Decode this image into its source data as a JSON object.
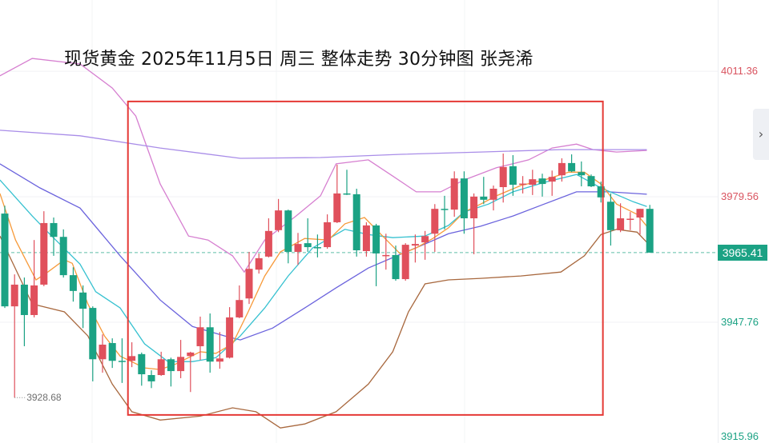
{
  "title": "现货黄金 2025年11月5日 周三 整体走势 30分钟图 张尧浠",
  "colors": {
    "up": "#e0505c",
    "down": "#1ba284",
    "upper_band": "#d67fd0",
    "lower_band": "#a8683e",
    "ma_fast": "#f79a3a",
    "ma_mid": "#36c1d0",
    "ma_slow": "#6b63dd",
    "ma_long": "#a98de8",
    "box": "#e53935",
    "axis_up": "#d9535f",
    "axis_down": "#1ba284"
  },
  "side_tab_icon": "chevron-right-icon",
  "chart_data": {
    "type": "candlestick",
    "title": "现货黄金 2025年11月5日 周三 整体走势 30分钟图 张尧浠",
    "ylim": [
      3915.96,
      4020.0
    ],
    "y_ticks": [
      "4011.36",
      "3979.56",
      "3947.76",
      "3915.96"
    ],
    "y_tick_values": [
      4011.36,
      3979.56,
      3947.76,
      3915.96
    ],
    "last_price": "3965.41",
    "low_marker": "3928.68",
    "candles": [
      [
        3975.3,
        3977.3,
        3951.4,
        3951.8
      ],
      [
        3951.8,
        3959.9,
        3928.68,
        3957.3
      ],
      [
        3957.3,
        3959.1,
        3941.7,
        3949.6
      ],
      [
        3949.6,
        3968.6,
        3949.0,
        3957.1
      ],
      [
        3957.3,
        3975.9,
        3956.9,
        3972.9
      ],
      [
        3972.9,
        3974.3,
        3964.6,
        3969.4
      ],
      [
        3969.4,
        3971.3,
        3959.1,
        3959.7
      ],
      [
        3959.7,
        3961.7,
        3953.0,
        3955.7
      ],
      [
        3955.3,
        3957.1,
        3946.3,
        3951.2
      ],
      [
        3951.4,
        3951.8,
        3932.8,
        3938.4
      ],
      [
        3938.4,
        3944.7,
        3935.0,
        3942.1
      ],
      [
        3942.5,
        3943.7,
        3936.2,
        3938.0
      ],
      [
        3938.0,
        3943.7,
        3932.4,
        3937.9
      ],
      [
        3938.0,
        3942.7,
        3936.4,
        3939.2
      ],
      [
        3939.7,
        3940.1,
        3931.7,
        3934.6
      ],
      [
        3934.4,
        3935.6,
        3931.1,
        3932.8
      ],
      [
        3934.4,
        3940.3,
        3934.2,
        3938.4
      ],
      [
        3938.4,
        3938.8,
        3931.5,
        3935.4
      ],
      [
        3935.4,
        3943.3,
        3933.6,
        3939.0
      ],
      [
        3939.2,
        3940.3,
        3930.1,
        3940.1
      ],
      [
        3941.7,
        3949.2,
        3938.2,
        3946.5
      ],
      [
        3946.5,
        3950.0,
        3935.0,
        3937.8
      ],
      [
        3937.8,
        3945.3,
        3936.0,
        3938.6
      ],
      [
        3938.8,
        3951.6,
        3938.6,
        3949.0
      ],
      [
        3949.0,
        3957.1,
        3948.8,
        3953.4
      ],
      [
        3953.8,
        3965.6,
        3952.4,
        3961.3
      ],
      [
        3961.1,
        3965.2,
        3960.1,
        3964.0
      ],
      [
        3964.4,
        3974.1,
        3964.2,
        3970.9
      ],
      [
        3971.1,
        3979.0,
        3970.6,
        3976.1
      ],
      [
        3976.1,
        3976.3,
        3962.7,
        3965.6
      ],
      [
        3965.6,
        3970.4,
        3962.3,
        3967.6
      ],
      [
        3967.8,
        3974.1,
        3965.6,
        3966.8
      ],
      [
        3966.8,
        3970.0,
        3964.2,
        3966.7
      ],
      [
        3966.8,
        3975.1,
        3966.4,
        3973.1
      ],
      [
        3973.1,
        3987.7,
        3972.9,
        3980.4
      ],
      [
        3980.4,
        3986.4,
        3980.0,
        3980.2
      ],
      [
        3980.2,
        3981.6,
        3964.4,
        3966.0
      ],
      [
        3965.8,
        3973.1,
        3964.4,
        3972.3
      ],
      [
        3972.3,
        3972.7,
        3956.9,
        3965.2
      ],
      [
        3964.6,
        3970.2,
        3961.1,
        3964.8
      ],
      [
        3964.8,
        3967.2,
        3958.3,
        3958.7
      ],
      [
        3958.7,
        3967.8,
        3958.3,
        3967.4
      ],
      [
        3967.2,
        3970.0,
        3962.9,
        3967.6
      ],
      [
        3968.0,
        3970.9,
        3963.6,
        3969.6
      ],
      [
        3970.2,
        3977.7,
        3965.6,
        3976.5
      ],
      [
        3976.5,
        3979.8,
        3971.3,
        3976.3
      ],
      [
        3976.3,
        3986.0,
        3974.5,
        3984.2
      ],
      [
        3984.2,
        3986.0,
        3970.2,
        3974.1
      ],
      [
        3974.1,
        3980.4,
        3965.0,
        3979.6
      ],
      [
        3979.6,
        3984.6,
        3977.7,
        3978.8
      ],
      [
        3978.8,
        3982.4,
        3976.1,
        3981.6
      ],
      [
        3982.0,
        3990.5,
        3978.1,
        3987.1
      ],
      [
        3987.3,
        3990.1,
        3979.8,
        3982.6
      ],
      [
        3982.8,
        3984.8,
        3980.4,
        3982.9
      ],
      [
        3982.6,
        3986.4,
        3980.0,
        3984.0
      ],
      [
        3984.2,
        3985.4,
        3979.6,
        3982.8
      ],
      [
        3983.4,
        3986.2,
        3979.8,
        3984.6
      ],
      [
        3985.0,
        3989.3,
        3983.4,
        3988.1
      ],
      [
        3988.1,
        3990.3,
        3985.8,
        3986.0
      ],
      [
        3985.8,
        3988.5,
        3982.2,
        3985.0
      ],
      [
        3984.8,
        3985.2,
        3982.0,
        3982.2
      ],
      [
        3982.2,
        3983.4,
        3978.1,
        3979.4
      ],
      [
        3978.3,
        3980.4,
        3967.2,
        3971.1
      ],
      [
        3971.1,
        3977.9,
        3970.6,
        3974.1
      ],
      [
        3973.9,
        3975.7,
        3971.1,
        3974.0
      ],
      [
        3974.3,
        3976.5,
        3970.0,
        3976.5
      ],
      [
        3976.5,
        3977.5,
        3965.41,
        3965.41
      ]
    ],
    "candle_fields": [
      "open",
      "high",
      "low",
      "close"
    ],
    "indicator_lines": [
      {
        "key": "upper_band",
        "points": [
          [
            -0.5,
            4010.2
          ],
          [
            2.8,
            4014.6
          ],
          [
            7.7,
            4013.2
          ],
          [
            11,
            4007.1
          ],
          [
            13.4,
            4000.0
          ],
          [
            15.9,
            3982.8
          ],
          [
            18.8,
            3969.6
          ],
          [
            20.8,
            3968.6
          ],
          [
            23.3,
            3964.6
          ],
          [
            24.5,
            3960.5
          ],
          [
            26.6,
            3968.6
          ],
          [
            29.8,
            3974.7
          ],
          [
            32.3,
            3979.8
          ],
          [
            33.9,
            3987.9
          ],
          [
            37.2,
            3988.9
          ],
          [
            39.7,
            3984.8
          ],
          [
            42.1,
            3980.8
          ],
          [
            44.6,
            3980.8
          ],
          [
            47,
            3983.8
          ],
          [
            50.3,
            3986.9
          ],
          [
            53.6,
            3988.9
          ],
          [
            56,
            3991.9
          ],
          [
            58.5,
            3992.9
          ],
          [
            60.2,
            3991.5
          ],
          [
            62.6,
            3990.9
          ],
          [
            65.7,
            3991.3
          ]
        ]
      },
      {
        "key": "lower_band",
        "points": [
          [
            -0.5,
            3969.6
          ],
          [
            2.8,
            3952.4
          ],
          [
            6.1,
            3950.4
          ],
          [
            8.5,
            3944.3
          ],
          [
            11,
            3932.1
          ],
          [
            13,
            3925.1
          ],
          [
            15.9,
            3923.0
          ],
          [
            20,
            3924.0
          ],
          [
            23.3,
            3926.1
          ],
          [
            25.7,
            3925.1
          ],
          [
            28.2,
            3921.0
          ],
          [
            30.7,
            3922.0
          ],
          [
            33.9,
            3925.1
          ],
          [
            37.2,
            3932.1
          ],
          [
            39.7,
            3940.3
          ],
          [
            41.3,
            3950.4
          ],
          [
            43,
            3957.5
          ],
          [
            45.4,
            3958.5
          ],
          [
            48.7,
            3958.9
          ],
          [
            52.8,
            3959.5
          ],
          [
            56.9,
            3960.5
          ],
          [
            59.3,
            3964.6
          ],
          [
            61,
            3970.0
          ],
          [
            62.6,
            3971.3
          ],
          [
            64.7,
            3970.6
          ],
          [
            65.7,
            3968.0
          ]
        ]
      },
      {
        "key": "ma_long",
        "points": [
          [
            -0.5,
            3996.4
          ],
          [
            7.7,
            3995.0
          ],
          [
            15.9,
            3991.9
          ],
          [
            24.1,
            3989.3
          ],
          [
            32.3,
            3989.5
          ],
          [
            40.5,
            3990.3
          ],
          [
            48.7,
            3990.9
          ],
          [
            56.9,
            3991.5
          ],
          [
            65.7,
            3991.5
          ]
        ]
      },
      {
        "key": "ma_slow",
        "points": [
          [
            -0.5,
            3987.9
          ],
          [
            3.6,
            3981.8
          ],
          [
            7.7,
            3976.7
          ],
          [
            11.8,
            3964.6
          ],
          [
            15.9,
            3953.4
          ],
          [
            19.2,
            3946.7
          ],
          [
            22.5,
            3944.3
          ],
          [
            24.1,
            3943.3
          ],
          [
            27.4,
            3946.3
          ],
          [
            30.7,
            3951.4
          ],
          [
            33.9,
            3956.5
          ],
          [
            37.2,
            3961.5
          ],
          [
            40.5,
            3965.0
          ],
          [
            43,
            3967.6
          ],
          [
            45.4,
            3970.2
          ],
          [
            48.7,
            3972.1
          ],
          [
            52,
            3974.7
          ],
          [
            55.2,
            3977.7
          ],
          [
            58.5,
            3980.8
          ],
          [
            61.8,
            3980.8
          ],
          [
            65.7,
            3980.2
          ]
        ]
      },
      {
        "key": "ma_mid",
        "points": [
          [
            -0.5,
            3983.8
          ],
          [
            2.8,
            3974.7
          ],
          [
            4.4,
            3970.6
          ],
          [
            7.7,
            3962.5
          ],
          [
            9.3,
            3955.5
          ],
          [
            11.8,
            3951.4
          ],
          [
            14.3,
            3942.3
          ],
          [
            16.7,
            3937.8
          ],
          [
            19.2,
            3937.8
          ],
          [
            21.6,
            3938.8
          ],
          [
            24.1,
            3944.3
          ],
          [
            26.6,
            3951.4
          ],
          [
            29,
            3959.5
          ],
          [
            31.5,
            3966.6
          ],
          [
            34.8,
            3971.3
          ],
          [
            37.2,
            3970.0
          ],
          [
            39.7,
            3969.2
          ],
          [
            43,
            3969.6
          ],
          [
            45.4,
            3972.3
          ],
          [
            47,
            3975.7
          ],
          [
            49.5,
            3977.7
          ],
          [
            52,
            3980.8
          ],
          [
            55.2,
            3983.2
          ],
          [
            58.5,
            3985.2
          ],
          [
            61,
            3981.8
          ],
          [
            64.3,
            3978.3
          ],
          [
            65.7,
            3977.1
          ]
        ]
      },
      {
        "key": "ma_fast",
        "points": [
          [
            -0.5,
            3980.4
          ],
          [
            1.1,
            3968.6
          ],
          [
            3.2,
            3958.5
          ],
          [
            4.4,
            3960.5
          ],
          [
            6.1,
            3963.6
          ],
          [
            6.9,
            3962.7
          ],
          [
            8.5,
            3952.4
          ],
          [
            10.2,
            3944.3
          ],
          [
            11.8,
            3939.2
          ],
          [
            14.3,
            3936.2
          ],
          [
            15.9,
            3935.8
          ],
          [
            17.5,
            3937.2
          ],
          [
            20,
            3940.3
          ],
          [
            21.6,
            3939.9
          ],
          [
            23.3,
            3942.3
          ],
          [
            24.9,
            3950.4
          ],
          [
            26.6,
            3959.5
          ],
          [
            28.2,
            3965.6
          ],
          [
            30.7,
            3969.0
          ],
          [
            33.1,
            3968.6
          ],
          [
            34.8,
            3972.7
          ],
          [
            36.8,
            3974.3
          ],
          [
            38.9,
            3969.0
          ],
          [
            40.5,
            3965.0
          ],
          [
            42.1,
            3966.6
          ],
          [
            43.8,
            3969.0
          ],
          [
            45.4,
            3971.7
          ],
          [
            47,
            3975.7
          ],
          [
            48.7,
            3977.7
          ],
          [
            50.3,
            3979.8
          ],
          [
            52.8,
            3982.4
          ],
          [
            55.2,
            3983.8
          ],
          [
            57.7,
            3985.8
          ],
          [
            59.3,
            3985.8
          ],
          [
            61,
            3982.8
          ],
          [
            62.6,
            3977.7
          ],
          [
            64.7,
            3975.1
          ],
          [
            65.7,
            3972.1
          ]
        ]
      }
    ],
    "annotation_box": {
      "from_candle": 12.6,
      "to_candle": 61.2,
      "price_top": 4003.7,
      "price_bottom": 3924.3
    },
    "grid": true
  }
}
